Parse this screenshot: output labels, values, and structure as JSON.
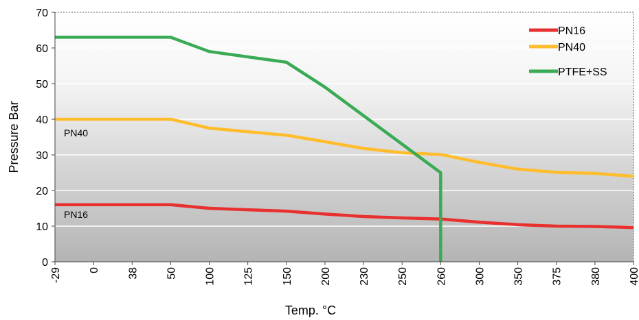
{
  "chart_data": {
    "type": "line",
    "xlabel": "Temp. °C",
    "ylabel": "Pressure Bar",
    "categories": [
      "-29",
      "0",
      "38",
      "50",
      "100",
      "125",
      "150",
      "200",
      "230",
      "250",
      "260",
      "300",
      "350",
      "375",
      "380",
      "400"
    ],
    "ylim": [
      0,
      70
    ],
    "yticks": [
      0,
      10,
      20,
      30,
      40,
      50,
      60,
      70
    ],
    "grid": true,
    "legend_position": "top-right",
    "series": [
      {
        "name": "PN16",
        "color": "#e8312f",
        "points": [
          {
            "x": "-29",
            "y": 16
          },
          {
            "x": "0",
            "y": 16
          },
          {
            "x": "38",
            "y": 16
          },
          {
            "x": "50",
            "y": 16
          },
          {
            "x": "100",
            "y": 15
          },
          {
            "x": "125",
            "y": 14.6
          },
          {
            "x": "150",
            "y": 14.2
          },
          {
            "x": "200",
            "y": 13.4
          },
          {
            "x": "230",
            "y": 12.7
          },
          {
            "x": "250",
            "y": 12.3
          },
          {
            "x": "260",
            "y": 12
          },
          {
            "x": "300",
            "y": 11.1
          },
          {
            "x": "350",
            "y": 10.4
          },
          {
            "x": "375",
            "y": 10
          },
          {
            "x": "380",
            "y": 9.9
          },
          {
            "x": "400",
            "y": 9.6
          }
        ]
      },
      {
        "name": "PN40",
        "color": "#ffbd2e",
        "points": [
          {
            "x": "-29",
            "y": 40
          },
          {
            "x": "0",
            "y": 40
          },
          {
            "x": "38",
            "y": 40
          },
          {
            "x": "50",
            "y": 40
          },
          {
            "x": "100",
            "y": 37.5
          },
          {
            "x": "125",
            "y": 36.5
          },
          {
            "x": "150",
            "y": 35.5
          },
          {
            "x": "200",
            "y": 33.7
          },
          {
            "x": "230",
            "y": 31.8
          },
          {
            "x": "250",
            "y": 30.6
          },
          {
            "x": "260",
            "y": 30.1
          },
          {
            "x": "300",
            "y": 27.9
          },
          {
            "x": "350",
            "y": 26
          },
          {
            "x": "375",
            "y": 25.1
          },
          {
            "x": "380",
            "y": 24.8
          },
          {
            "x": "400",
            "y": 24
          }
        ]
      },
      {
        "name": "PTFE+SS",
        "color": "#3aaa55",
        "points": [
          {
            "x": "-29",
            "y": 63
          },
          {
            "x": "0",
            "y": 63
          },
          {
            "x": "38",
            "y": 63
          },
          {
            "x": "50",
            "y": 63
          },
          {
            "x": "100",
            "y": 59
          },
          {
            "x": "150",
            "y": 56
          },
          {
            "x": "200",
            "y": 49
          },
          {
            "x": "260",
            "y": 25
          },
          {
            "x": "260",
            "y": 0
          }
        ]
      }
    ],
    "annotations": [
      {
        "text": "PN40",
        "near_series": "PN40"
      },
      {
        "text": "PN16",
        "near_series": "PN16"
      }
    ]
  }
}
